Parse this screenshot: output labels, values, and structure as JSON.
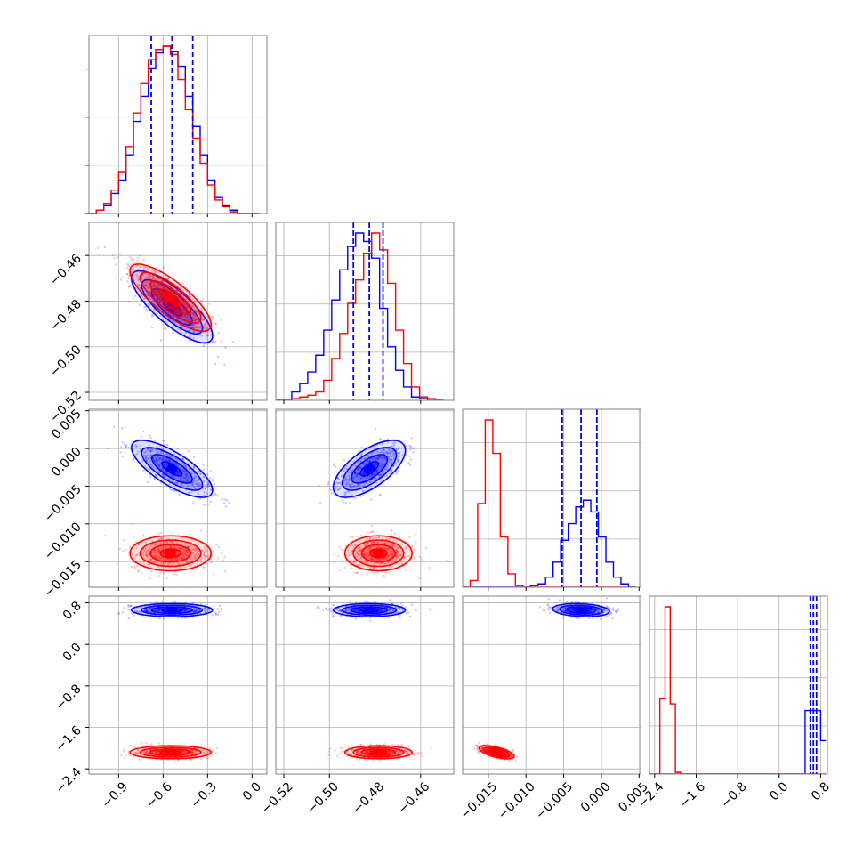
{
  "colors": {
    "series_a": "#0000ff",
    "series_b": "#ff0000",
    "grid": "#b0b0b0",
    "frame": "#808080"
  },
  "chart_data": {
    "type": "corner",
    "n_params": 4,
    "grid": true,
    "params": [
      {
        "range": [
          -1.1,
          0.1
        ],
        "ticks": [
          -0.9,
          -0.6,
          -0.3,
          0.0
        ],
        "tick_labels": [
          "−0.9",
          "−0.6",
          "−0.3",
          "0.0"
        ]
      },
      {
        "range": [
          -0.5235,
          -0.4455
        ],
        "ticks": [
          -0.52,
          -0.5,
          -0.48,
          -0.46
        ],
        "tick_labels": [
          "−0.52",
          "−0.50",
          "−0.48",
          "−0.46"
        ]
      },
      {
        "range": [
          -0.0184,
          0.0052
        ],
        "ticks": [
          -0.015,
          -0.01,
          -0.005,
          0.0,
          0.005
        ],
        "tick_labels": [
          "−0.015",
          "−0.010",
          "−0.005",
          "0.000",
          "0.005"
        ]
      },
      {
        "range": [
          -2.5,
          0.93
        ],
        "ticks": [
          -2.4,
          -1.6,
          -0.8,
          0.0,
          0.8
        ],
        "tick_labels": [
          "−2.4",
          "−1.6",
          "−0.8",
          "0.0",
          "0.8"
        ]
      }
    ],
    "series": [
      {
        "color": "#0000ff",
        "mean": [
          -0.54,
          -0.4825,
          -0.0027,
          0.66
        ],
        "sd": [
          0.13,
          0.0075,
          0.0018,
          0.06
        ],
        "quantile_lines": [
          [
            -0.68,
            -0.54,
            -0.4
          ],
          [
            -0.4895,
            -0.4825,
            -0.4765
          ],
          [
            -0.0052,
            -0.0027,
            -0.0006
          ],
          [
            0.6,
            0.66,
            0.72
          ]
        ]
      },
      {
        "color": "#ff0000",
        "mean": [
          -0.55,
          -0.4785,
          -0.0139,
          -2.08
        ],
        "sd": [
          0.13,
          0.007,
          0.0011,
          0.06
        ]
      }
    ],
    "histograms": [
      {
        "bins": [
          -1.1,
          -1.05,
          -1.0,
          -0.95,
          -0.9,
          -0.85,
          -0.8,
          -0.75,
          -0.7,
          -0.65,
          -0.6,
          -0.55,
          -0.5,
          -0.45,
          -0.4,
          -0.35,
          -0.3,
          -0.25,
          -0.2,
          -0.15,
          -0.1,
          -0.05,
          0.0,
          0.05
        ],
        "counts": [
          [
            0,
            2,
            5,
            12,
            20,
            35,
            55,
            70,
            87,
            96,
            100,
            97,
            88,
            70,
            52,
            35,
            20,
            10,
            5,
            2,
            0,
            0,
            0
          ],
          [
            0,
            2,
            6,
            14,
            25,
            40,
            60,
            78,
            92,
            98,
            100,
            95,
            80,
            62,
            45,
            30,
            17,
            8,
            4,
            1,
            0,
            0,
            0
          ]
        ]
      },
      {
        "bins": [
          -0.5235,
          -0.52,
          -0.5165,
          -0.513,
          -0.5095,
          -0.506,
          -0.5025,
          -0.499,
          -0.4955,
          -0.492,
          -0.4885,
          -0.485,
          -0.4815,
          -0.478,
          -0.4745,
          -0.471,
          -0.4675,
          -0.464,
          -0.4605,
          -0.457,
          -0.4535,
          -0.45
        ],
        "counts": [
          [
            0,
            0,
            5,
            10,
            17,
            27,
            42,
            60,
            78,
            92,
            100,
            95,
            85,
            55,
            32,
            18,
            8,
            2,
            1,
            0,
            0
          ],
          [
            0,
            0,
            1,
            2,
            3,
            5,
            12,
            25,
            40,
            58,
            72,
            88,
            100,
            90,
            70,
            42,
            22,
            8,
            2,
            1,
            0
          ]
        ]
      },
      {
        "bins": [
          -0.0184,
          -0.0174,
          -0.0164,
          -0.0154,
          -0.0144,
          -0.0134,
          -0.0124,
          -0.0114,
          -0.0104,
          -0.0094,
          -0.0084,
          -0.0074,
          -0.0064,
          -0.0054,
          -0.0044,
          -0.0034,
          -0.0024,
          -0.0014,
          -0.0004,
          0.0006,
          0.0016,
          0.0026,
          0.0036,
          0.0046
        ],
        "counts": [
          [
            0,
            0,
            0,
            0,
            0,
            0,
            0,
            0,
            0,
            1,
            2,
            6,
            15,
            28,
            38,
            48,
            52,
            45,
            30,
            15,
            6,
            2,
            0
          ],
          [
            0,
            4,
            50,
            100,
            80,
            30,
            8,
            1,
            0,
            0,
            0,
            0,
            0,
            0,
            0,
            0,
            0,
            0,
            0,
            0,
            0,
            0,
            0
          ]
        ]
      },
      {
        "bins": [
          -2.5,
          -2.4,
          -2.3,
          -2.2,
          -2.1,
          -2.0,
          -1.9,
          -1.8,
          -1.7,
          -1.6,
          -1.5,
          -1.4,
          -1.3,
          -1.2,
          -1.1,
          -1.0,
          -0.9,
          -0.8,
          -0.7,
          -0.6,
          -0.5,
          -0.4,
          -0.3,
          -0.2,
          -0.1,
          0.0,
          0.1,
          0.2,
          0.3,
          0.4,
          0.5,
          0.6,
          0.7,
          0.8,
          0.9
        ],
        "counts": [
          [
            0,
            0,
            0,
            0,
            0,
            0,
            0,
            0,
            0,
            0,
            0,
            0,
            0,
            0,
            0,
            0,
            0,
            0,
            0,
            0,
            0,
            0,
            0,
            0,
            0,
            0,
            0,
            0,
            0,
            0,
            38,
            38,
            38,
            20
          ],
          [
            0,
            0,
            45,
            100,
            42,
            1,
            0,
            0,
            0,
            0,
            0,
            0,
            0,
            0,
            0,
            0,
            0,
            0,
            0,
            0,
            0,
            0,
            0,
            0,
            0,
            0,
            0,
            0,
            0,
            0,
            0,
            0,
            0,
            0
          ]
        ]
      }
    ]
  }
}
